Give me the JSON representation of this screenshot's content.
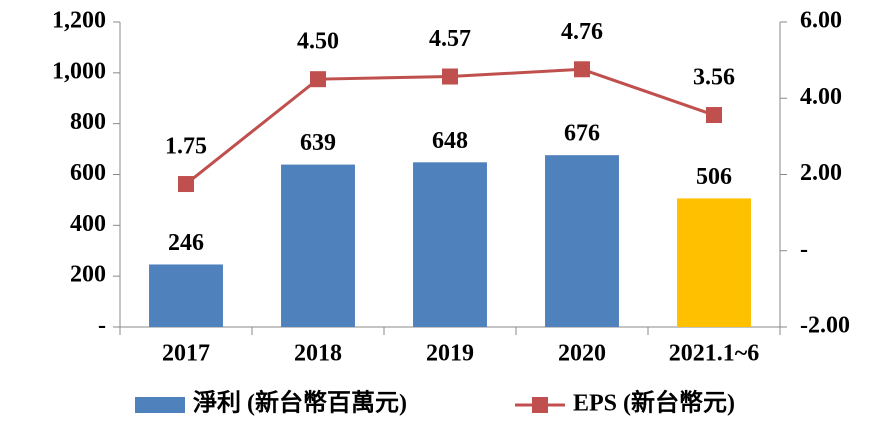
{
  "chart_data": {
    "type": "bar",
    "categories": [
      "2017",
      "2018",
      "2019",
      "2020",
      "2021.1~6"
    ],
    "series": [
      {
        "name": "淨利 (新台幣百萬元)",
        "color": "#4F81BD",
        "colors": [
          "#4F81BD",
          "#4F81BD",
          "#4F81BD",
          "#4F81BD",
          "#FFC000"
        ],
        "values": [
          246,
          639,
          648,
          676,
          506
        ]
      },
      {
        "name": "EPS (新台幣元)",
        "type": "line",
        "axis": "y2",
        "color": "#C0504D",
        "values": [
          1.75,
          4.5,
          4.57,
          4.76,
          3.56
        ],
        "value_labels": [
          "1.75",
          "4.50",
          "4.57",
          "4.76",
          "3.56"
        ]
      }
    ],
    "ylim": [
      0,
      1200
    ],
    "yticks": [
      {
        "value": 0,
        "label": "-"
      },
      200,
      400,
      600,
      800,
      {
        "value": 1000,
        "label": "1,000"
      },
      {
        "value": 1200,
        "label": "1,200"
      }
    ],
    "y2lim": [
      -2,
      6
    ],
    "y2ticks": [
      {
        "value": -2,
        "label": "-2.00"
      },
      {
        "value": 0,
        "label": "-"
      },
      {
        "value": 2,
        "label": "2.00"
      },
      {
        "value": 4,
        "label": "4.00"
      },
      {
        "value": 6,
        "label": "6.00"
      }
    ],
    "legend": "bottom"
  }
}
